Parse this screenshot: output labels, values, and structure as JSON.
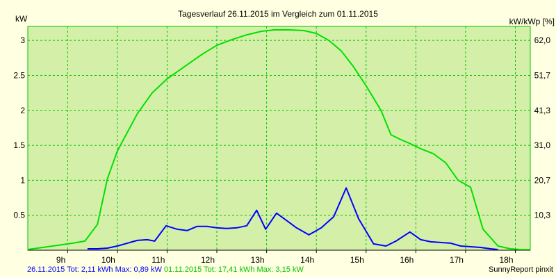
{
  "chart_data": {
    "type": "line",
    "title": "Tagesverlauf 26.11.2015 im Vergleich zum 01.11.2015",
    "ylabel_left": "kW",
    "ylabel_right": "kW/kWp [%]",
    "x_ticks": [
      "9h",
      "10h",
      "11h",
      "12h",
      "13h",
      "14h",
      "15h",
      "16h",
      "17h",
      "18h"
    ],
    "x_tick_hours": [
      9,
      10,
      11,
      12,
      13,
      14,
      15,
      16,
      17,
      18
    ],
    "xlim": [
      8.2,
      18.3
    ],
    "ylim": [
      0,
      3.2
    ],
    "y_ticks": [
      0.5,
      1,
      1.5,
      2,
      2.5,
      3
    ],
    "y_tick_labels": [
      "0.5",
      "1",
      "1.5",
      "2",
      "2.5",
      "3"
    ],
    "y2_ticks": [
      0.5,
      1,
      1.5,
      2,
      2.5,
      3
    ],
    "y2_tick_labels": [
      "10,3",
      "20,7",
      "31,0",
      "41,3",
      "51,7",
      "62,0"
    ],
    "grid": true,
    "colors": {
      "background": "#ffffe1",
      "plot": "#d4f0a8",
      "grid": "#00c000",
      "blue": "#0000ff",
      "green": "#00e000"
    },
    "series": [
      {
        "color": "#0000ff",
        "x": [
          9.4,
          9.6,
          9.8,
          10.0,
          10.2,
          10.4,
          10.6,
          10.75,
          10.98,
          11.2,
          11.4,
          11.6,
          11.8,
          12.0,
          12.2,
          12.4,
          12.6,
          12.8,
          12.98,
          13.2,
          13.45,
          13.6,
          13.85,
          14.1,
          14.35,
          14.6,
          14.85,
          15.15,
          15.4,
          15.6,
          15.88,
          16.1,
          16.3,
          16.5,
          16.7,
          16.9,
          17.1,
          17.3,
          17.5,
          17.65
        ],
        "values": [
          0.02,
          0.02,
          0.03,
          0.06,
          0.1,
          0.14,
          0.15,
          0.13,
          0.35,
          0.3,
          0.28,
          0.34,
          0.34,
          0.32,
          0.31,
          0.32,
          0.35,
          0.57,
          0.3,
          0.53,
          0.4,
          0.32,
          0.22,
          0.32,
          0.48,
          0.89,
          0.45,
          0.09,
          0.06,
          0.13,
          0.26,
          0.15,
          0.12,
          0.11,
          0.1,
          0.06,
          0.05,
          0.04,
          0.02,
          0.01
        ]
      },
      {
        "color": "#00e000",
        "x": [
          8.2,
          8.5,
          8.8,
          9.1,
          9.35,
          9.6,
          9.8,
          10.0,
          10.4,
          10.7,
          11.0,
          11.4,
          11.7,
          12.0,
          12.3,
          12.6,
          12.9,
          13.15,
          13.45,
          13.75,
          14.0,
          14.25,
          14.5,
          14.75,
          15.0,
          15.3,
          15.5,
          15.7,
          15.9,
          16.1,
          16.35,
          16.6,
          16.85,
          17.1,
          17.35,
          17.65,
          17.9,
          18.1,
          18.3
        ],
        "values": [
          0.01,
          0.04,
          0.07,
          0.1,
          0.13,
          0.37,
          1.02,
          1.42,
          1.95,
          2.25,
          2.45,
          2.65,
          2.8,
          2.93,
          3.01,
          3.08,
          3.13,
          3.15,
          3.15,
          3.14,
          3.1,
          3.0,
          2.85,
          2.62,
          2.35,
          2.0,
          1.65,
          1.58,
          1.52,
          1.45,
          1.38,
          1.25,
          1.0,
          0.9,
          0.3,
          0.06,
          0.02,
          0.01,
          0.01
        ]
      }
    ]
  },
  "footer": {
    "blue_text": "26.11.2015 Tot: 2,11 kWh Max: 0,89 kW",
    "green_text": "01.11.2015 Tot: 17,41 kWh Max: 3,15 kW",
    "brand": "SunnyReport pinxit"
  }
}
